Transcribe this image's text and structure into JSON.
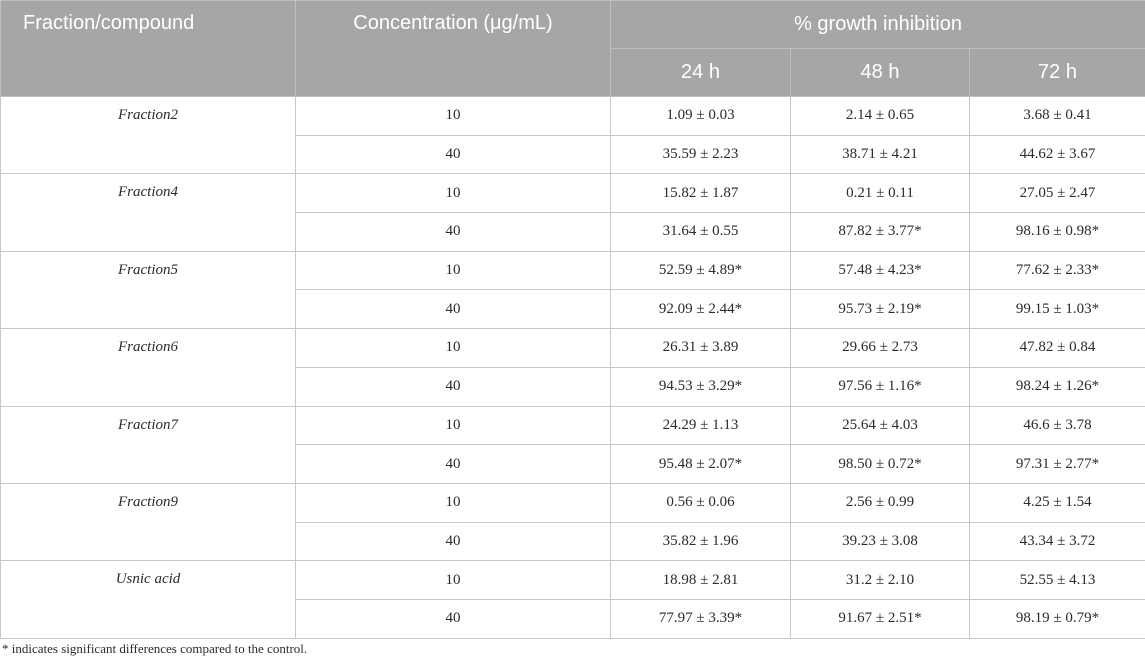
{
  "header": {
    "col_fraction": "Fraction/compound",
    "col_concentration": "Concentration (μg/mL)",
    "col_group": "% growth inhibition",
    "col_24h": "24 h",
    "col_48h": "48 h",
    "col_72h": "72 h"
  },
  "rows": [
    {
      "name": "Fraction2",
      "r1": {
        "conc": "10",
        "h24": "1.09 ± 0.03",
        "h48": "2.14 ± 0.65",
        "h72": "3.68 ± 0.41"
      },
      "r2": {
        "conc": "40",
        "h24": "35.59 ± 2.23",
        "h48": "38.71 ± 4.21",
        "h72": "44.62 ± 3.67"
      }
    },
    {
      "name": "Fraction4",
      "r1": {
        "conc": "10",
        "h24": "15.82 ± 1.87",
        "h48": "0.21 ± 0.11",
        "h72": "27.05 ± 2.47"
      },
      "r2": {
        "conc": "40",
        "h24": "31.64 ± 0.55",
        "h48": "87.82 ± 3.77*",
        "h72": "98.16 ± 0.98*"
      }
    },
    {
      "name": "Fraction5",
      "r1": {
        "conc": "10",
        "h24": "52.59 ± 4.89*",
        "h48": "57.48 ± 4.23*",
        "h72": "77.62 ± 2.33*"
      },
      "r2": {
        "conc": "40",
        "h24": "92.09 ± 2.44*",
        "h48": "95.73 ± 2.19*",
        "h72": "99.15 ± 1.03*"
      }
    },
    {
      "name": "Fraction6",
      "r1": {
        "conc": "10",
        "h24": "26.31 ± 3.89",
        "h48": "29.66 ± 2.73",
        "h72": "47.82 ± 0.84"
      },
      "r2": {
        "conc": "40",
        "h24": "94.53 ± 3.29*",
        "h48": "97.56 ± 1.16*",
        "h72": "98.24 ± 1.26*"
      }
    },
    {
      "name": "Fraction7",
      "r1": {
        "conc": "10",
        "h24": "24.29 ± 1.13",
        "h48": "25.64 ± 4.03",
        "h72": "46.6 ± 3.78"
      },
      "r2": {
        "conc": "40",
        "h24": "95.48 ± 2.07*",
        "h48": "98.50 ± 0.72*",
        "h72": "97.31 ± 2.77*"
      }
    },
    {
      "name": "Fraction9",
      "r1": {
        "conc": "10",
        "h24": "0.56 ± 0.06",
        "h48": "2.56 ± 0.99",
        "h72": "4.25 ± 1.54"
      },
      "r2": {
        "conc": "40",
        "h24": "35.82 ± 1.96",
        "h48": "39.23 ± 3.08",
        "h72": "43.34 ± 3.72"
      }
    },
    {
      "name": "Usnic acid",
      "r1": {
        "conc": "10",
        "h24": "18.98 ± 2.81",
        "h48": "31.2 ± 2.10",
        "h72": "52.55 ± 4.13"
      },
      "r2": {
        "conc": "40",
        "h24": "77.97 ± 3.39*",
        "h48": "91.67 ± 2.51*",
        "h72": "98.19 ± 0.79*"
      }
    }
  ],
  "footnote": "* indicates significant differences compared to the control."
}
